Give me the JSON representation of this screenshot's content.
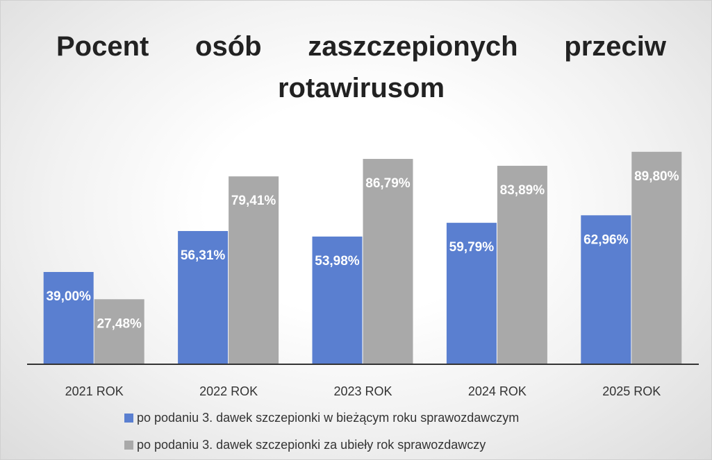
{
  "chart_data": {
    "type": "bar",
    "title": "Pocent osób zaszczepionych przeciw rotawirusom",
    "categories": [
      "2021 ROK",
      "2022 ROK",
      "2023 ROK",
      "2024 ROK",
      "2025 ROK"
    ],
    "series": [
      {
        "name": "po podaniu 3. dawek szczepionki w bieżącym roku sprawozdawczym",
        "color": "#5a7fd0",
        "values": [
          39.0,
          56.31,
          53.98,
          59.79,
          62.96
        ],
        "value_labels": [
          "39,00%",
          "56,31%",
          "53,98%",
          "59,79%",
          "62,96%"
        ]
      },
      {
        "name": "po podaniu 3. dawek szczepionki za ubiеły rok sprawozdawczy",
        "color": "#a9a9a9",
        "values": [
          27.48,
          79.41,
          86.79,
          83.89,
          89.8
        ],
        "value_labels": [
          "27,48%",
          "79,41%",
          "86,79%",
          "83,89%",
          "89,80%"
        ]
      }
    ]
  }
}
